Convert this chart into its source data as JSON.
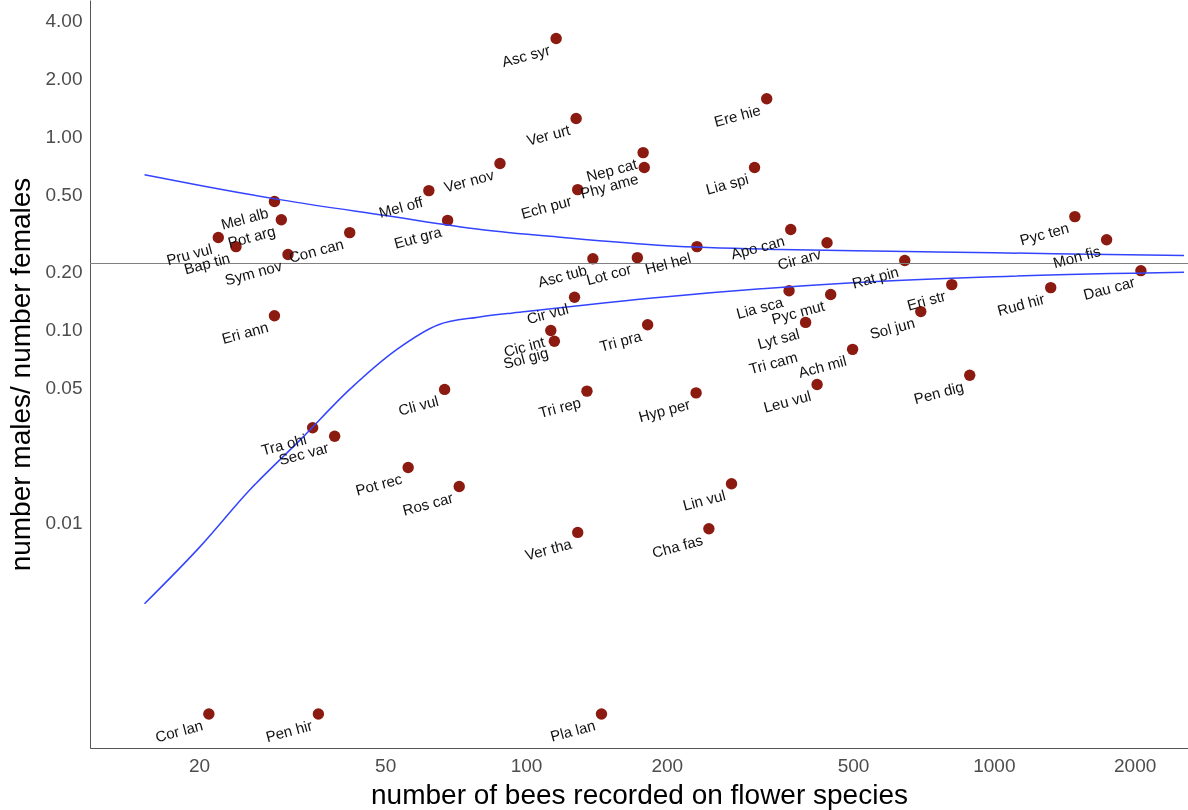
{
  "chart_data": {
    "type": "scatter",
    "xlabel": "number of bees recorded on flower species",
    "ylabel": "number males/ number females",
    "log": "xy",
    "grid": false,
    "xlim": [
      11.7,
      2600
    ],
    "ylim": [
      0.00068,
      5.1
    ],
    "xticks": [
      20,
      50,
      100,
      200,
      500,
      {
        "value": 1000,
        "label": "1000"
      },
      {
        "value": 2000,
        "label": "2000"
      }
    ],
    "yticks": [
      {
        "value": 0.01,
        "label": "0.01"
      },
      {
        "value": 0.05,
        "label": "0.05"
      },
      {
        "value": 0.1,
        "label": "0.10"
      },
      {
        "value": 0.2,
        "label": "0.20"
      },
      {
        "value": 0.5,
        "label": "0.50"
      },
      {
        "value": 1,
        "label": "1.00"
      },
      {
        "value": 2,
        "label": "2.00"
      },
      {
        "value": 4,
        "label": "4.00"
      }
    ],
    "ref_lines": [
      {
        "axis": "y",
        "value": 0.22,
        "color": "#808080"
      }
    ],
    "series": [
      {
        "marker": "circle",
        "color": "#8b1a10",
        "x": [
          116,
          327,
          128,
          178,
          179,
          88,
          308,
          62,
          129,
          29,
          30,
          68,
          1490,
          22,
          42,
          368,
          1742,
          24,
          232,
          440,
          31,
          139,
          173,
          645,
          2062,
          813,
          1323,
          365,
          448,
          127,
          29,
          698,
          396,
          182,
          113,
          115,
          499,
          888,
          67,
          135,
          231,
          419,
          35,
          39,
          56,
          72,
          275,
          129,
          246,
          21,
          36,
          145
        ],
        "values": [
          3.22,
          1.57,
          1.24,
          0.826,
          0.691,
          0.725,
          0.691,
          0.525,
          0.531,
          0.461,
          0.371,
          0.368,
          0.385,
          0.3,
          0.318,
          0.33,
          0.292,
          0.269,
          0.269,
          0.282,
          0.245,
          0.233,
          0.236,
          0.228,
          0.202,
          0.171,
          0.165,
          0.159,
          0.152,
          0.147,
          0.118,
          0.124,
          0.109,
          0.106,
          0.099,
          0.087,
          0.079,
          0.058,
          0.049,
          0.048,
          0.047,
          0.052,
          0.031,
          0.028,
          0.0193,
          0.0154,
          0.0159,
          0.0089,
          0.0093,
          0.00102,
          0.00102,
          0.00102
        ]
      },
      {
        "type": "line",
        "color": "#3344ff",
        "x": [
          15.3,
          20,
          30,
          50,
          80,
          120,
          200,
          350,
          600,
          1000,
          1600,
          2550
        ],
        "values": [
          0.635,
          0.56,
          0.47,
          0.39,
          0.33,
          0.3,
          0.272,
          0.26,
          0.255,
          0.25,
          0.246,
          0.242
        ]
      },
      {
        "type": "line",
        "color": "#3344ff",
        "x": [
          15.3,
          20,
          25.7,
          33,
          42,
          53,
          65,
          79,
          100,
          200,
          500,
          1000,
          2550
        ],
        "values": [
          0.0038,
          0.0074,
          0.0148,
          0.027,
          0.049,
          0.079,
          0.106,
          0.116,
          0.124,
          0.148,
          0.175,
          0.188,
          0.198
        ]
      }
    ],
    "annotations": [
      {
        "text": "Asc syr",
        "x": 116,
        "y": 3.22
      },
      {
        "text": "Ere hie",
        "x": 327,
        "y": 1.57
      },
      {
        "text": "Ver urt",
        "x": 128,
        "y": 1.24
      },
      {
        "text": "Nep cat",
        "x": 178,
        "y": 0.826
      },
      {
        "text": "Phy ame",
        "x": 179,
        "y": 0.691
      },
      {
        "text": "Ver nov",
        "x": 88,
        "y": 0.725
      },
      {
        "text": "Lia spi",
        "x": 308,
        "y": 0.691
      },
      {
        "text": "Mel off",
        "x": 62,
        "y": 0.525
      },
      {
        "text": "Ech pur",
        "x": 129,
        "y": 0.531
      },
      {
        "text": "Mel alb",
        "x": 29,
        "y": 0.461
      },
      {
        "text": "Pot arg",
        "x": 30,
        "y": 0.371
      },
      {
        "text": "Eut gra",
        "x": 68,
        "y": 0.368
      },
      {
        "text": "Pyc ten",
        "x": 1490,
        "y": 0.385
      },
      {
        "text": "Pru vul",
        "x": 22,
        "y": 0.3
      },
      {
        "text": "Con can",
        "x": 42,
        "y": 0.318
      },
      {
        "text": "Apo can",
        "x": 368,
        "y": 0.33
      },
      {
        "text": "Mon fis",
        "x": 1742,
        "y": 0.292
      },
      {
        "text": "Bap tin",
        "x": 24,
        "y": 0.269
      },
      {
        "text": "Hel hel",
        "x": 232,
        "y": 0.269
      },
      {
        "text": "Cir arv",
        "x": 440,
        "y": 0.282
      },
      {
        "text": "Sym nov",
        "x": 31,
        "y": 0.245
      },
      {
        "text": "Asc tub",
        "x": 139,
        "y": 0.233
      },
      {
        "text": "Lot cor",
        "x": 173,
        "y": 0.236
      },
      {
        "text": "Rat pin",
        "x": 645,
        "y": 0.228
      },
      {
        "text": "Dau car",
        "x": 2062,
        "y": 0.202
      },
      {
        "text": "Eri str",
        "x": 813,
        "y": 0.171
      },
      {
        "text": "Rud hir",
        "x": 1323,
        "y": 0.165
      },
      {
        "text": "Lia sca",
        "x": 365,
        "y": 0.159
      },
      {
        "text": "Pyc mut",
        "x": 448,
        "y": 0.152
      },
      {
        "text": "Cir vul",
        "x": 127,
        "y": 0.147
      },
      {
        "text": "Eri ann",
        "x": 29,
        "y": 0.118
      },
      {
        "text": "Sol jun",
        "x": 698,
        "y": 0.124
      },
      {
        "text": "Lyt sal",
        "x": 396,
        "y": 0.109
      },
      {
        "text": "Tri pra",
        "x": 182,
        "y": 0.106
      },
      {
        "text": "Cic int",
        "x": 113,
        "y": 0.099
      },
      {
        "text": "Sol gig",
        "x": 115,
        "y": 0.087
      },
      {
        "text": "Ach mil",
        "x": 499,
        "y": 0.079
      },
      {
        "text": "Pen dig",
        "x": 888,
        "y": 0.058
      },
      {
        "text": "Cli vul",
        "x": 67,
        "y": 0.049
      },
      {
        "text": "Tri rep",
        "x": 135,
        "y": 0.048
      },
      {
        "text": "Hyp per",
        "x": 231,
        "y": 0.047
      },
      {
        "text": "Leu vul",
        "x": 419,
        "y": 0.052
      },
      {
        "text": "Tra ohi",
        "x": 35,
        "y": 0.031
      },
      {
        "text": "Sec var",
        "x": 39,
        "y": 0.028
      },
      {
        "text": "Pot rec",
        "x": 56,
        "y": 0.0193
      },
      {
        "text": "Ros car",
        "x": 72,
        "y": 0.0154
      },
      {
        "text": "Lin vul",
        "x": 275,
        "y": 0.0159
      },
      {
        "text": "Ver tha",
        "x": 129,
        "y": 0.0089
      },
      {
        "text": "Cha fas",
        "x": 246,
        "y": 0.0093
      },
      {
        "text": "Cor lan",
        "x": 21,
        "y": 0.00102
      },
      {
        "text": "Pen hir",
        "x": 36,
        "y": 0.00102
      },
      {
        "text": "Pla lan",
        "x": 145,
        "y": 0.00102
      },
      {
        "text": "Tri cam",
        "x": 396,
        "y": 0.109
      }
    ]
  }
}
